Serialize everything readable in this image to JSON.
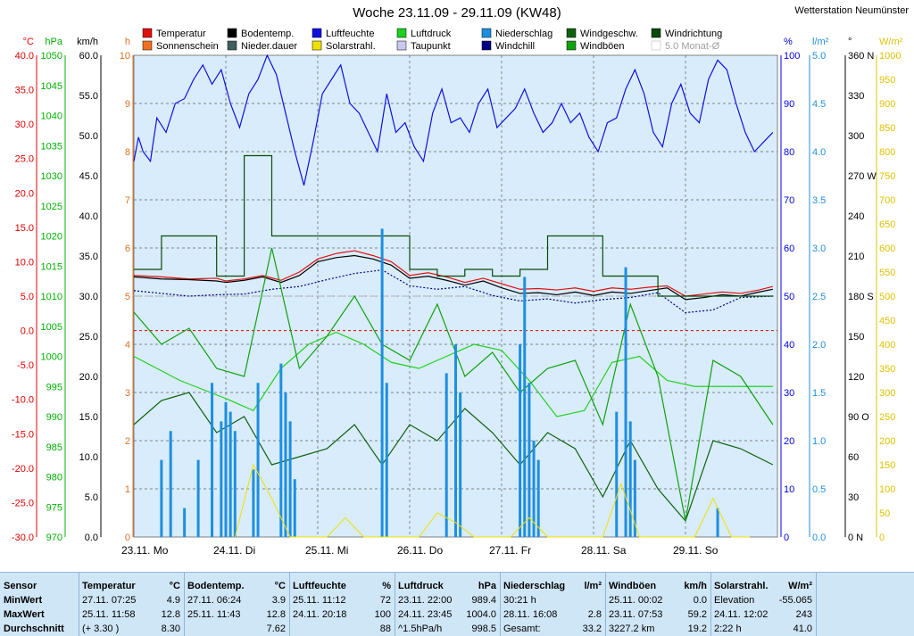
{
  "title": "Woche 23.11.09 - 29.11.09 (KW48)",
  "station": "Wetterstation Neumünster",
  "legend": [
    {
      "label": "Temperatur",
      "color": "#e01010"
    },
    {
      "label": "Bodentemp.",
      "color": "#000000"
    },
    {
      "label": "Luftfeuchte",
      "color": "#1010e0"
    },
    {
      "label": "Luftdruck",
      "color": "#20d020"
    },
    {
      "label": "Niederschlag",
      "color": "#1e8fe0"
    },
    {
      "label": "Windgeschw.",
      "color": "#106010"
    },
    {
      "label": "Windrichtung",
      "color": "#0a4a0a"
    },
    {
      "label": "Sonnenschein",
      "color": "#f07020"
    },
    {
      "label": "Nieder.dauer",
      "color": "#406060"
    },
    {
      "label": "Solarstrahl.",
      "color": "#f0e000"
    },
    {
      "label": "Taupunkt",
      "color": "#c8c8f0"
    },
    {
      "label": "Windchill",
      "color": "#000080"
    },
    {
      "label": "Windböen",
      "color": "#10a010"
    },
    {
      "label": "5.0 Monat-Ø",
      "color": "#b0b0b0"
    }
  ],
  "axes": {
    "left": [
      {
        "unit": "°C",
        "color": "#e00000",
        "ticks": [
          "40.0",
          "35.0",
          "30.0",
          "25.0",
          "20.0",
          "15.0",
          "10.0",
          "5.0",
          "0.0",
          "-5.0",
          "-10.0",
          "-15.0",
          "-20.0",
          "-25.0",
          "-30.0"
        ]
      },
      {
        "unit": "hPa",
        "color": "#00b000",
        "ticks": [
          "1050",
          "1045",
          "1040",
          "1035",
          "1030",
          "1025",
          "1020",
          "1015",
          "1010",
          "1005",
          "1000",
          "995",
          "990",
          "985",
          "980",
          "975",
          "970"
        ]
      },
      {
        "unit": "km/h",
        "color": "#000000",
        "ticks": [
          "60.0",
          "55.0",
          "50.0",
          "45.0",
          "40.0",
          "35.0",
          "30.0",
          "25.0",
          "20.0",
          "15.0",
          "10.0",
          "5.0",
          "0.0"
        ]
      },
      {
        "unit": "h",
        "color": "#e07020",
        "ticks": [
          "10",
          "9",
          "8",
          "7",
          "6",
          "5",
          "4",
          "3",
          "2",
          "1",
          "0"
        ]
      }
    ],
    "right": [
      {
        "unit": "%",
        "color": "#0000e0",
        "ticks": [
          "100",
          "90",
          "80",
          "70",
          "60",
          "50",
          "40",
          "30",
          "20",
          "10",
          "0"
        ]
      },
      {
        "unit": "l/m²",
        "color": "#1e8fe0",
        "ticks": [
          "5.0",
          "4.5",
          "4.0",
          "3.5",
          "3.0",
          "2.5",
          "2.0",
          "1.5",
          "1.0",
          "0.5",
          "0.0"
        ]
      },
      {
        "unit": "°",
        "color": "#000000",
        "ticks": [
          "360 N",
          "330",
          "300",
          "270 W",
          "240",
          "210",
          "180 S",
          "150",
          "120",
          "90 O",
          "60",
          "30",
          "0 N"
        ]
      },
      {
        "unit": "W/m²",
        "color": "#e0c000",
        "ticks": [
          "1000",
          "950",
          "900",
          "850",
          "800",
          "750",
          "700",
          "650",
          "600",
          "550",
          "500",
          "450",
          "400",
          "350",
          "300",
          "250",
          "200",
          "150",
          "100",
          "50",
          "0"
        ]
      }
    ]
  },
  "x_labels": [
    "23.11. Mo",
    "24.11. Di",
    "25.11. Mi",
    "26.11. Do",
    "27.11. Fr",
    "28.11. Sa",
    "29.11. So"
  ],
  "chart_data": {
    "type": "line",
    "title": "Woche 23.11.09 - 29.11.09 (KW48)",
    "x_unit": "day",
    "x_range": [
      "23.11.09",
      "30.11.09"
    ],
    "series": [
      {
        "name": "Luftfeuchte",
        "unit": "%",
        "x": [
          0,
          0.05,
          0.1,
          0.18,
          0.25,
          0.35,
          0.45,
          0.55,
          0.65,
          0.75,
          0.85,
          0.95,
          1.05,
          1.15,
          1.25,
          1.35,
          1.45,
          1.55,
          1.65,
          1.75,
          1.85,
          1.95,
          2.05,
          2.15,
          2.25,
          2.35,
          2.45,
          2.55,
          2.65,
          2.75,
          2.85,
          2.95,
          3.05,
          3.15,
          3.25,
          3.35,
          3.45,
          3.55,
          3.65,
          3.75,
          3.85,
          3.95,
          4.05,
          4.15,
          4.25,
          4.35,
          4.45,
          4.55,
          4.65,
          4.75,
          4.85,
          4.95,
          5.05,
          5.15,
          5.25,
          5.35,
          5.45,
          5.55,
          5.65,
          5.75,
          5.85,
          5.95,
          6.05,
          6.15,
          6.25,
          6.35,
          6.45,
          6.55,
          6.65,
          6.75,
          6.85,
          6.95
        ],
        "y": [
          78,
          83,
          80,
          78,
          87,
          84,
          90,
          91,
          95,
          98,
          94,
          97,
          90,
          85,
          92,
          95,
          100,
          96,
          88,
          80,
          73,
          82,
          92,
          95,
          98,
          90,
          88,
          84,
          80,
          92,
          84,
          86,
          81,
          78,
          88,
          93,
          86,
          87,
          84,
          90,
          93,
          85,
          87,
          89,
          93,
          88,
          84,
          86,
          90,
          86,
          88,
          83,
          80,
          86,
          87,
          93,
          97,
          92,
          84,
          81,
          90,
          94,
          88,
          86,
          95,
          99,
          97,
          90,
          84,
          80,
          82,
          84
        ]
      },
      {
        "name": "Temperatur",
        "unit": "°C",
        "x": [
          0,
          0.3,
          0.6,
          0.9,
          1.0,
          1.2,
          1.4,
          1.6,
          1.8,
          2.0,
          2.2,
          2.4,
          2.6,
          2.8,
          3.0,
          3.2,
          3.4,
          3.6,
          3.8,
          4.0,
          4.2,
          4.4,
          4.6,
          4.8,
          5.0,
          5.2,
          5.4,
          5.6,
          5.8,
          6.0,
          6.2,
          6.4,
          6.6,
          6.8,
          6.95
        ],
        "y": [
          8.0,
          7.8,
          7.5,
          7.6,
          7.2,
          7.5,
          8.0,
          7.3,
          8.5,
          10.4,
          11.2,
          11.6,
          10.9,
          10.0,
          8.0,
          8.4,
          7.8,
          7.0,
          7.6,
          6.8,
          6.0,
          6.1,
          5.9,
          6.2,
          5.7,
          6.2,
          6.0,
          6.3,
          6.5,
          5.0,
          5.3,
          5.6,
          5.4,
          5.9,
          6.4
        ]
      },
      {
        "name": "Bodentemp.",
        "unit": "°C",
        "x": [
          0,
          0.3,
          0.6,
          0.9,
          1.0,
          1.2,
          1.4,
          1.6,
          1.8,
          2.0,
          2.2,
          2.4,
          2.6,
          2.8,
          3.0,
          3.2,
          3.4,
          3.6,
          3.8,
          4.0,
          4.2,
          4.4,
          4.6,
          4.8,
          5.0,
          5.2,
          5.4,
          5.6,
          5.8,
          6.0,
          6.2,
          6.4,
          6.6,
          6.8,
          6.95
        ],
        "y": [
          7.8,
          7.5,
          7.4,
          7.2,
          7.0,
          7.3,
          7.8,
          7.0,
          8.0,
          10.0,
          10.6,
          10.9,
          10.4,
          9.5,
          7.6,
          7.9,
          7.3,
          6.6,
          7.2,
          6.2,
          5.4,
          5.5,
          5.2,
          5.6,
          5.1,
          5.6,
          5.4,
          5.8,
          6.2,
          4.5,
          4.8,
          5.2,
          5.0,
          5.6,
          6.0
        ]
      },
      {
        "name": "Taupunkt",
        "unit": "°C",
        "x": [
          0,
          0.3,
          0.6,
          0.9,
          1.2,
          1.5,
          1.8,
          2.1,
          2.4,
          2.7,
          3.0,
          3.3,
          3.6,
          3.9,
          4.2,
          4.5,
          4.8,
          5.1,
          5.4,
          5.7,
          6.0,
          6.3,
          6.6,
          6.95
        ],
        "y": [
          5.8,
          5.4,
          5.0,
          5.2,
          5.3,
          6.0,
          6.4,
          7.4,
          8.3,
          8.8,
          6.5,
          6.0,
          6.4,
          5.1,
          4.3,
          4.6,
          4.0,
          4.5,
          4.8,
          5.5,
          2.6,
          3.0,
          4.8,
          5.0
        ]
      },
      {
        "name": "Luftdruck",
        "unit": "hPa",
        "x": [
          0,
          0.5,
          1.0,
          1.3,
          1.6,
          1.9,
          2.2,
          2.5,
          2.8,
          3.1,
          3.4,
          3.7,
          4.0,
          4.3,
          4.6,
          4.9,
          5.2,
          5.5,
          5.8,
          6.1,
          6.4,
          6.7,
          6.95
        ],
        "y": [
          1000,
          996,
          993,
          991,
          998,
          1002,
          1004,
          1002,
          999,
          998,
          1000,
          1002,
          1001,
          996,
          990,
          991,
          999,
          1000,
          996,
          995,
          995,
          995,
          995
        ]
      },
      {
        "name": "Windgeschw.",
        "unit": "km/h",
        "x": [
          0,
          0.3,
          0.6,
          0.9,
          1.2,
          1.5,
          1.8,
          2.1,
          2.4,
          2.7,
          3.0,
          3.3,
          3.6,
          3.9,
          4.2,
          4.5,
          4.8,
          5.1,
          5.4,
          5.7,
          6.0,
          6.3,
          6.6,
          6.95
        ],
        "y": [
          14,
          17,
          18,
          13,
          15,
          9,
          10,
          11,
          14,
          9,
          14,
          12,
          16,
          13,
          9,
          13,
          11,
          5,
          12,
          6,
          2,
          12,
          11,
          9
        ]
      },
      {
        "name": "Windböen",
        "unit": "km/h",
        "x": [
          0,
          0.3,
          0.6,
          0.9,
          1.2,
          1.5,
          1.8,
          2.1,
          2.4,
          2.7,
          3.0,
          3.3,
          3.6,
          3.9,
          4.2,
          4.5,
          4.8,
          5.1,
          5.4,
          5.7,
          6.0,
          6.3,
          6.6,
          6.95
        ],
        "y": [
          28,
          24,
          26,
          21,
          20,
          36,
          21,
          25,
          30,
          24,
          22,
          29,
          20,
          23,
          18,
          21,
          22,
          14,
          29,
          20,
          2,
          22,
          20,
          14
        ]
      },
      {
        "name": "Windrichtung",
        "unit": "°",
        "x": [
          0,
          0.3,
          0.6,
          0.9,
          1.2,
          1.5,
          1.8,
          2.1,
          2.4,
          2.7,
          3.0,
          3.3,
          3.6,
          3.9,
          4.2,
          4.5,
          4.8,
          5.1,
          5.4,
          5.7,
          6.0,
          6.3,
          6.6,
          6.95
        ],
        "y": [
          200,
          225,
          225,
          195,
          285,
          225,
          225,
          225,
          225,
          225,
          200,
          195,
          200,
          195,
          200,
          225,
          225,
          195,
          195,
          180,
          180,
          180,
          180,
          180
        ]
      },
      {
        "name": "Niederschlag",
        "unit": "l/m²",
        "x": [
          0.3,
          0.4,
          0.55,
          0.7,
          0.85,
          0.95,
          1.0,
          1.05,
          1.1,
          1.3,
          1.35,
          1.6,
          1.65,
          1.7,
          1.75,
          2.7,
          2.75,
          3.4,
          3.5,
          3.55,
          4.2,
          4.25,
          4.3,
          4.35,
          4.4,
          5.25,
          5.35,
          5.4,
          5.45,
          6.35
        ],
        "y": [
          0.8,
          1.1,
          0.3,
          0.8,
          1.6,
          1.2,
          1.4,
          1.3,
          1.1,
          0.7,
          1.6,
          1.8,
          1.5,
          1.2,
          0.6,
          3.2,
          1.6,
          1.7,
          2.0,
          1.5,
          2.0,
          2.7,
          1.6,
          1.0,
          0.8,
          1.3,
          2.8,
          1.2,
          0.8,
          0.3
        ]
      },
      {
        "name": "Solarstrahl.",
        "unit": "W/m²",
        "x": [
          1.1,
          1.3,
          1.5,
          1.7,
          2.1,
          2.3,
          2.5,
          2.7,
          3.1,
          3.3,
          3.5,
          3.7,
          4.1,
          4.3,
          4.5,
          4.7,
          5.1,
          5.3,
          5.5,
          5.7,
          6.1,
          6.3,
          6.5,
          6.7
        ],
        "y": [
          0,
          150,
          80,
          0,
          0,
          40,
          0,
          0,
          0,
          50,
          30,
          0,
          0,
          40,
          0,
          0,
          0,
          110,
          0,
          0,
          0,
          80,
          0,
          0
        ]
      }
    ],
    "stats_note": "Sensor statistics table below the chart"
  },
  "stats": [
    {
      "h1": "Sensor",
      "h2": "",
      "rows": [
        [
          "MinWert",
          ""
        ],
        [
          "MaxWert",
          ""
        ],
        [
          "Durchschnitt",
          ""
        ]
      ]
    },
    {
      "h1": "Temperatur",
      "h2": "°C",
      "rows": [
        [
          "27.11.  07:25",
          "4.9"
        ],
        [
          "25.11.  11:58",
          "12.8"
        ],
        [
          "(+ 3.30 )",
          "8.30"
        ]
      ]
    },
    {
      "h1": "Bodentemp.",
      "h2": "°C",
      "rows": [
        [
          "27.11.  06:24",
          "3.9"
        ],
        [
          "25.11.  11:43",
          "12.8"
        ],
        [
          "",
          "7.62"
        ]
      ]
    },
    {
      "h1": "Luftfeuchte",
      "h2": "%",
      "rows": [
        [
          "25.11.  11:12",
          "72"
        ],
        [
          "24.11.  20:18",
          "100"
        ],
        [
          "",
          "88"
        ]
      ]
    },
    {
      "h1": "Luftdruck",
      "h2": "hPa",
      "rows": [
        [
          "23.11.  22:00",
          "989.4"
        ],
        [
          "24.11.  23:45",
          "1004.0"
        ],
        [
          "^1.5hPa/h",
          "998.5"
        ]
      ]
    },
    {
      "h1": "Niederschlag",
      "h2": "l/m²",
      "rows": [
        [
          "30:21 h",
          ""
        ],
        [
          "28.11.  16:08",
          "2.8"
        ],
        [
          "Gesamt:",
          "33.2"
        ]
      ]
    },
    {
      "h1": "Windböen",
      "h2": "km/h",
      "rows": [
        [
          "25.11.  00:02",
          "0.0"
        ],
        [
          "23.11.  07:53",
          "59.2"
        ],
        [
          "3227.2 km",
          "19.2"
        ]
      ]
    },
    {
      "h1": "Solarstrahl.",
      "h2": "W/m²",
      "rows": [
        [
          "Elevation",
          "-55.065"
        ],
        [
          "24.11.  12:02",
          "243"
        ],
        [
          "2:22 h",
          "41.0"
        ]
      ]
    },
    {
      "h1": "",
      "h2": "",
      "rows": [
        [
          "",
          ""
        ],
        [
          "",
          ""
        ],
        [
          "",
          ""
        ]
      ]
    }
  ]
}
